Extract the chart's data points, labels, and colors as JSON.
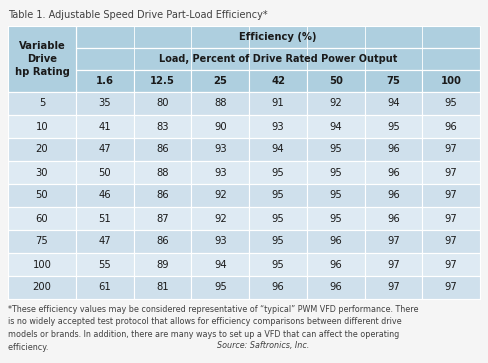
{
  "title": "Table 1. Adjustable Speed Drive Part-Load Efficiency*",
  "header_row1": "Efficiency (%)",
  "header_row2": "Load, Percent of Drive Rated Power Output",
  "col_header": "Variable\nDrive\nhp Rating",
  "load_cols": [
    "1.6",
    "12.5",
    "25",
    "42",
    "50",
    "75",
    "100"
  ],
  "hp_rows": [
    "5",
    "10",
    "20",
    "30",
    "50",
    "60",
    "75",
    "100",
    "200"
  ],
  "data": [
    [
      35,
      80,
      88,
      91,
      92,
      94,
      95
    ],
    [
      41,
      83,
      90,
      93,
      94,
      95,
      96
    ],
    [
      47,
      86,
      93,
      94,
      95,
      96,
      97
    ],
    [
      50,
      88,
      93,
      95,
      95,
      96,
      97
    ],
    [
      46,
      86,
      92,
      95,
      95,
      96,
      97
    ],
    [
      51,
      87,
      92,
      95,
      95,
      96,
      97
    ],
    [
      47,
      86,
      93,
      95,
      96,
      97,
      97
    ],
    [
      55,
      89,
      94,
      95,
      96,
      97,
      97
    ],
    [
      61,
      81,
      95,
      96,
      96,
      97,
      97
    ]
  ],
  "footnote_main": "*These efficiency values may be considered representative of “typical” PWM VFD performance. There\nis no widely accepted test protocol that allows for efficiency comparisons between different drive\nmodels or brands. In addition, there are many ways to set up a VFD that can affect the operating\nefficiency. ",
  "footnote_italic": "Source: Saftronics, Inc.",
  "bg_color": "#f5f5f5",
  "header_bg": "#aecfdf",
  "row_bg_light": "#cfe0ec",
  "row_bg_lighter": "#deeaf3",
  "header_text_color": "#1a1a1a",
  "cell_text_color": "#1a1a1a",
  "title_color": "#404040",
  "footnote_color": "#404040",
  "grid_color": "#ffffff",
  "title_fontsize": 7.0,
  "header_fontsize": 7.2,
  "cell_fontsize": 7.2,
  "footnote_fontsize": 5.8
}
